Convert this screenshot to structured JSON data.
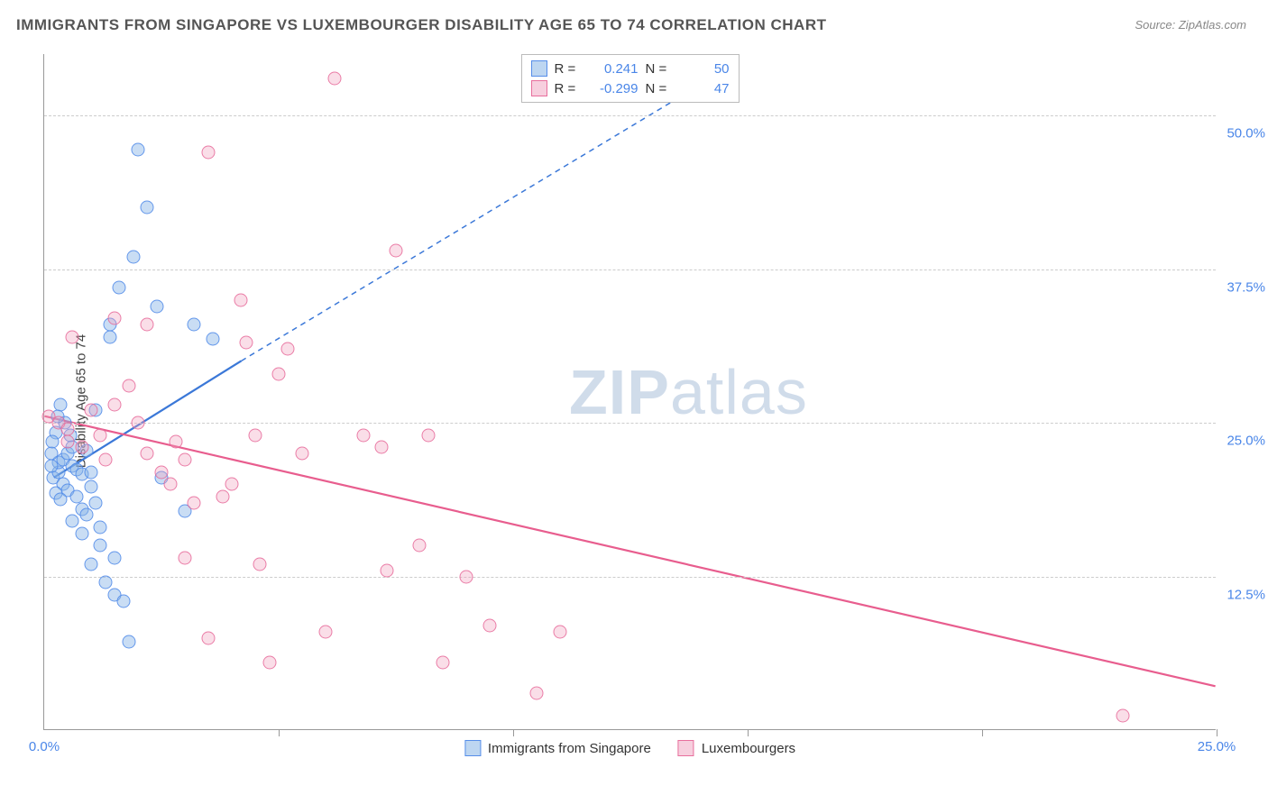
{
  "title": "IMMIGRANTS FROM SINGAPORE VS LUXEMBOURGER DISABILITY AGE 65 TO 74 CORRELATION CHART",
  "source": "Source: ZipAtlas.com",
  "watermark_a": "ZIP",
  "watermark_b": "atlas",
  "chart": {
    "type": "scatter",
    "ylabel": "Disability Age 65 to 74",
    "xlim": [
      0,
      25
    ],
    "ylim": [
      0,
      55
    ],
    "background_color": "#ffffff",
    "grid_color": "#cccccc",
    "axis_color": "#999999",
    "tick_color": "#4a86e8",
    "axis_label_color": "#444444",
    "title_color": "#555555",
    "title_fontsize": 17,
    "label_fontsize": 15,
    "tick_fontsize": 15,
    "marker_size": 15,
    "ytick_labels": [
      {
        "value": 12.5,
        "label": "12.5%"
      },
      {
        "value": 25.0,
        "label": "25.0%"
      },
      {
        "value": 37.5,
        "label": "37.5%"
      },
      {
        "value": 50.0,
        "label": "50.0%"
      }
    ],
    "xtick_positions": [
      5,
      10,
      15,
      20,
      25
    ],
    "xtick_labels": [
      {
        "value": 0,
        "label": "0.0%"
      },
      {
        "value": 25,
        "label": "25.0%"
      }
    ],
    "series": [
      {
        "name": "Immigrants from Singapore",
        "color_fill": "rgba(135,180,230,0.45)",
        "color_stroke": "rgba(74,134,232,0.8)",
        "line_color": "#3b78d8",
        "line_width": 2.2,
        "R": "0.241",
        "N": "50",
        "trend": {
          "solid": {
            "x1": 0.2,
            "y1": 20.5,
            "x2": 4.2,
            "y2": 30.0
          },
          "dashed": {
            "x1": 4.2,
            "y1": 30.0,
            "x2": 14.0,
            "y2": 52.5
          }
        },
        "points": [
          [
            0.2,
            20.5
          ],
          [
            0.3,
            21.0
          ],
          [
            0.3,
            21.8
          ],
          [
            0.4,
            22.0
          ],
          [
            0.4,
            20.0
          ],
          [
            0.5,
            22.5
          ],
          [
            0.5,
            19.5
          ],
          [
            0.6,
            21.5
          ],
          [
            0.6,
            23.0
          ],
          [
            0.7,
            21.2
          ],
          [
            0.7,
            19.0
          ],
          [
            0.8,
            18.0
          ],
          [
            0.8,
            20.8
          ],
          [
            0.9,
            22.7
          ],
          [
            0.9,
            17.5
          ],
          [
            1.0,
            19.8
          ],
          [
            1.0,
            21.0
          ],
          [
            1.1,
            26.0
          ],
          [
            1.1,
            18.5
          ],
          [
            1.2,
            16.5
          ],
          [
            1.2,
            15.0
          ],
          [
            1.3,
            12.0
          ],
          [
            1.4,
            32.0
          ],
          [
            1.4,
            33.0
          ],
          [
            1.5,
            11.0
          ],
          [
            1.5,
            14.0
          ],
          [
            1.6,
            36.0
          ],
          [
            1.7,
            10.5
          ],
          [
            1.8,
            7.2
          ],
          [
            1.9,
            38.5
          ],
          [
            2.0,
            47.2
          ],
          [
            2.2,
            42.5
          ],
          [
            2.4,
            34.5
          ],
          [
            2.5,
            20.5
          ],
          [
            3.0,
            17.8
          ],
          [
            3.2,
            33.0
          ],
          [
            3.6,
            31.8
          ],
          [
            0.35,
            26.5
          ],
          [
            0.45,
            25.0
          ],
          [
            0.55,
            24.0
          ],
          [
            0.25,
            24.2
          ],
          [
            0.25,
            19.3
          ],
          [
            0.35,
            18.8
          ],
          [
            0.15,
            21.5
          ],
          [
            0.15,
            22.5
          ],
          [
            0.18,
            23.5
          ],
          [
            0.28,
            25.5
          ],
          [
            0.6,
            17.0
          ],
          [
            0.8,
            16.0
          ],
          [
            1.0,
            13.5
          ]
        ]
      },
      {
        "name": "Luxembourgers",
        "color_fill": "rgba(240,160,190,0.35)",
        "color_stroke": "rgba(230,100,150,0.8)",
        "line_color": "#e85d8e",
        "line_width": 2.2,
        "R": "-0.299",
        "N": "47",
        "trend": {
          "solid": {
            "x1": 0.0,
            "y1": 25.5,
            "x2": 25.0,
            "y2": 3.5
          }
        },
        "points": [
          [
            0.1,
            25.5
          ],
          [
            0.3,
            25.0
          ],
          [
            0.5,
            23.5
          ],
          [
            0.5,
            24.5
          ],
          [
            0.8,
            23.0
          ],
          [
            1.0,
            26.0
          ],
          [
            1.2,
            24.0
          ],
          [
            1.3,
            22.0
          ],
          [
            1.5,
            26.5
          ],
          [
            1.8,
            28.0
          ],
          [
            2.0,
            25.0
          ],
          [
            2.2,
            22.5
          ],
          [
            2.5,
            21.0
          ],
          [
            2.7,
            20.0
          ],
          [
            2.8,
            23.5
          ],
          [
            3.0,
            22.0
          ],
          [
            3.0,
            14.0
          ],
          [
            3.2,
            18.5
          ],
          [
            3.5,
            47.0
          ],
          [
            3.5,
            7.5
          ],
          [
            4.0,
            20.0
          ],
          [
            4.2,
            35.0
          ],
          [
            4.3,
            31.5
          ],
          [
            4.5,
            24.0
          ],
          [
            4.6,
            13.5
          ],
          [
            4.8,
            5.5
          ],
          [
            5.0,
            29.0
          ],
          [
            5.2,
            31.0
          ],
          [
            5.5,
            22.5
          ],
          [
            6.0,
            8.0
          ],
          [
            6.2,
            53.0
          ],
          [
            6.8,
            24.0
          ],
          [
            7.2,
            23.0
          ],
          [
            7.3,
            13.0
          ],
          [
            7.5,
            39.0
          ],
          [
            8.0,
            15.0
          ],
          [
            8.2,
            24.0
          ],
          [
            8.5,
            5.5
          ],
          [
            9.0,
            12.5
          ],
          [
            9.5,
            8.5
          ],
          [
            10.5,
            3.0
          ],
          [
            11.0,
            8.0
          ],
          [
            23.0,
            1.2
          ],
          [
            1.5,
            33.5
          ],
          [
            0.6,
            32.0
          ],
          [
            2.2,
            33.0
          ],
          [
            3.8,
            19.0
          ]
        ]
      }
    ],
    "legend_top": {
      "labels": {
        "R": "R =",
        "N": "N ="
      }
    },
    "legend_bottom": {
      "items": [
        {
          "swatch": "blue",
          "label": "Immigrants from Singapore"
        },
        {
          "swatch": "pink",
          "label": "Luxembourgers"
        }
      ]
    }
  }
}
